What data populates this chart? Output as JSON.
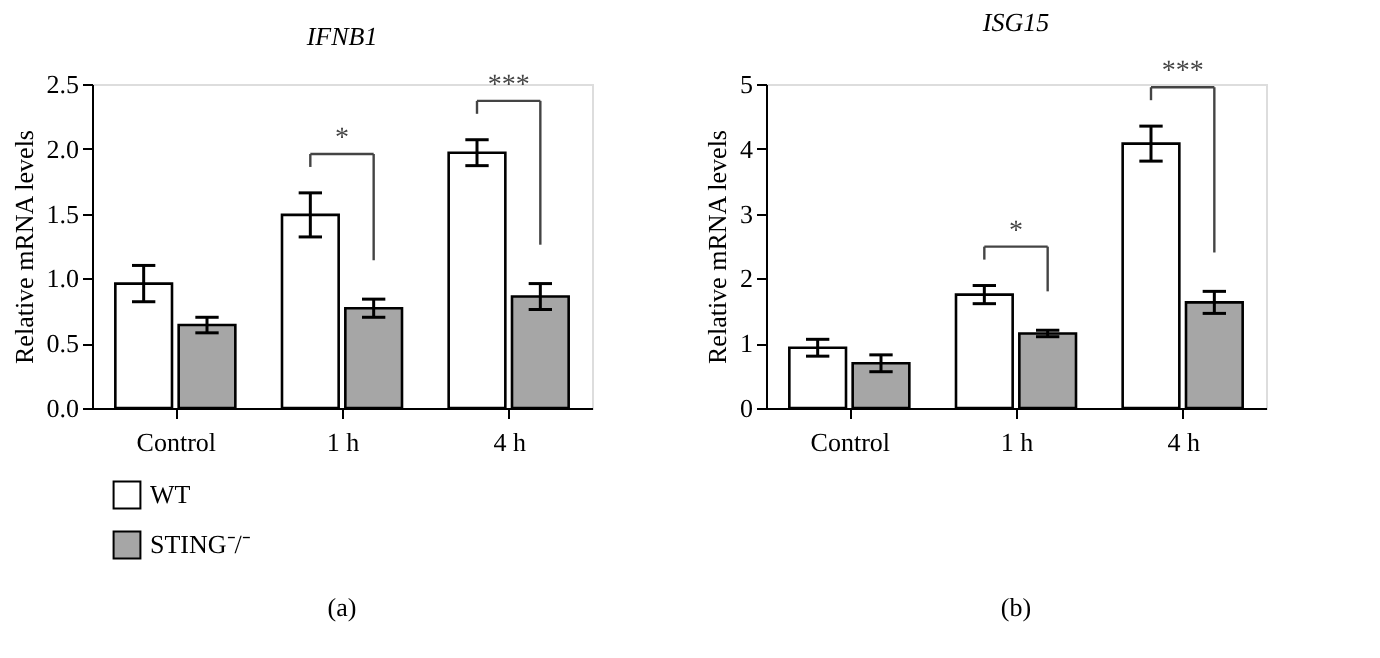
{
  "chart_data": [
    {
      "type": "bar",
      "title": "IFNB1",
      "ylabel": "Relative mRNA levels",
      "categories": [
        "Control",
        "1 h",
        "4 h"
      ],
      "series": [
        {
          "name": "WT",
          "color": "#ffffff",
          "values": [
            0.96,
            1.49,
            1.97
          ],
          "errors": [
            0.14,
            0.17,
            0.1
          ]
        },
        {
          "name": "STING⁻/⁻",
          "color": "#a6a6a6",
          "values": [
            0.64,
            0.77,
            0.86
          ],
          "errors": [
            0.06,
            0.07,
            0.1
          ]
        }
      ],
      "ylim": [
        0,
        2.5
      ],
      "yticks": [
        {
          "value": 0,
          "label": "0.0"
        },
        {
          "value": 0.5,
          "label": "0.5"
        },
        {
          "value": 1,
          "label": "1.0"
        },
        {
          "value": 1.5,
          "label": "1.5"
        },
        {
          "value": 2,
          "label": "2.0"
        },
        {
          "value": 2.5,
          "label": "2.5"
        }
      ],
      "legend": "bottom left",
      "annotations": [
        "*",
        "***",
        "(a)"
      ]
    },
    {
      "type": "bar",
      "title": "ISG15",
      "ylabel": "Relative mRNA levels",
      "categories": [
        "Control",
        "1 h",
        "4 h"
      ],
      "series": [
        {
          "name": "WT",
          "color": "#ffffff",
          "values": [
            0.93,
            1.75,
            4.08
          ],
          "errors": [
            0.13,
            0.14,
            0.27
          ]
        },
        {
          "name": "STING⁻/⁻",
          "color": "#a6a6a6",
          "values": [
            0.69,
            1.15,
            1.63
          ],
          "errors": [
            0.13,
            0.05,
            0.17
          ]
        }
      ],
      "ylim": [
        0,
        5
      ],
      "yticks": [
        0,
        1,
        2,
        3,
        4,
        5
      ],
      "legend": "bottom left",
      "annotations": [
        "*",
        "***",
        "(b)"
      ]
    }
  ]
}
